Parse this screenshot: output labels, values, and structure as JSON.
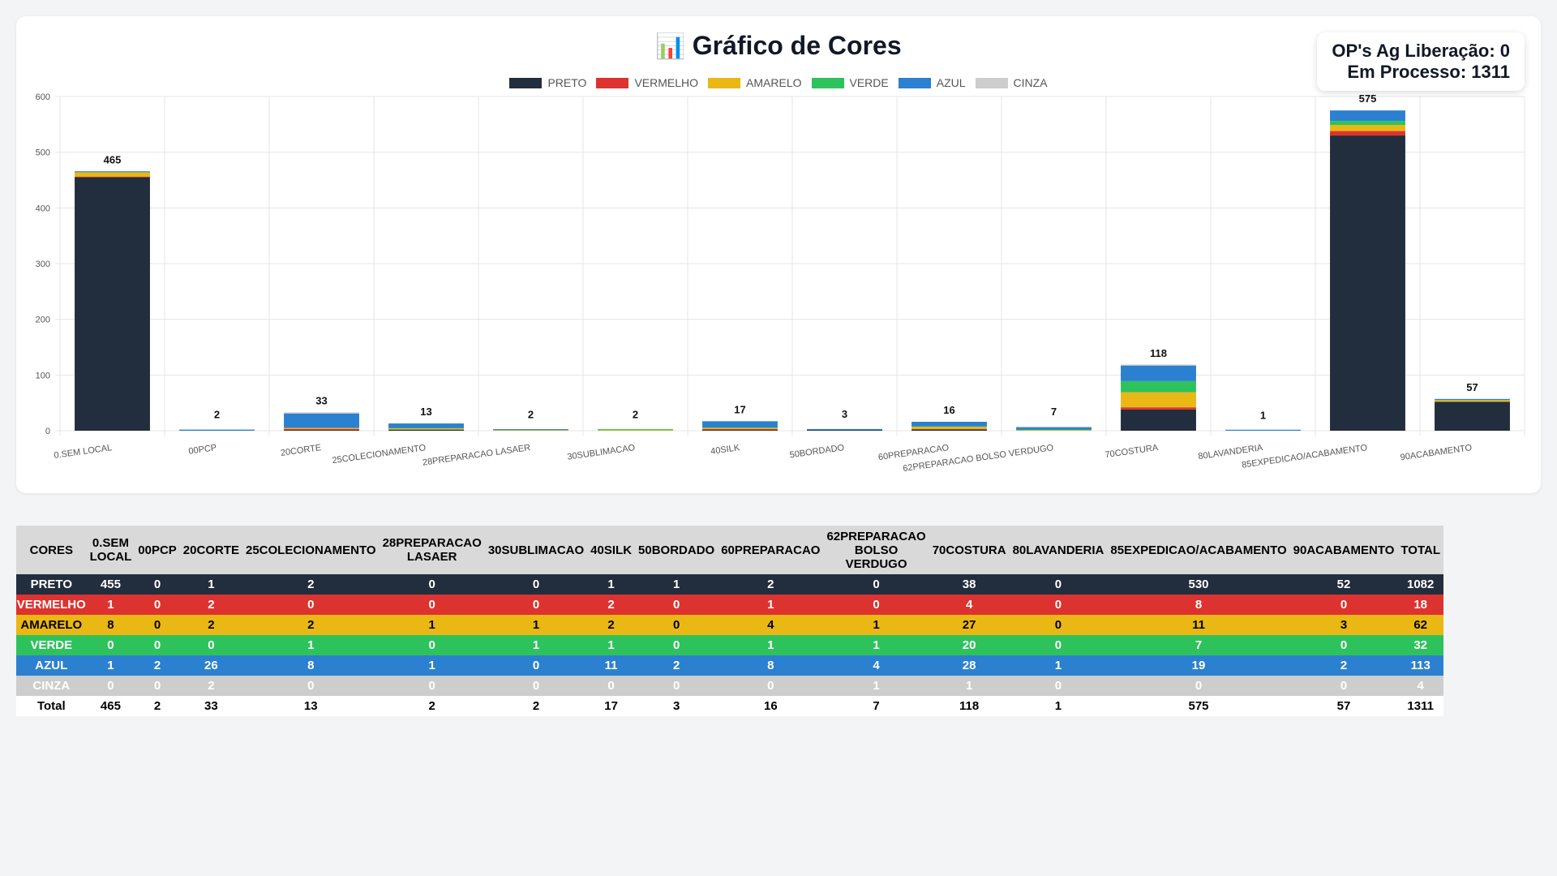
{
  "title": "Gráfico de Cores",
  "title_icon": "📊",
  "info": {
    "line1": "OP's Ag Liberação: 0",
    "line2": "Em Processo: 1311"
  },
  "chart_data": {
    "type": "bar",
    "stacked": true,
    "ylim": [
      0,
      600
    ],
    "yticks": [
      0,
      100,
      200,
      300,
      400,
      500,
      600
    ],
    "grid": true,
    "legend_position": "top",
    "categories": [
      "0.SEM LOCAL",
      "00PCP",
      "20CORTE",
      "25COLECIONAMENTO",
      "28PREPARACAO LASAER",
      "30SUBLIMACAO",
      "40SILK",
      "50BORDADO",
      "60PREPARACAO",
      "62PREPARACAO BOLSO VERDUGO",
      "70COSTURA",
      "80LAVANDERIA",
      "85EXPEDICAO/ACABAMENTO",
      "90ACABAMENTO"
    ],
    "series": [
      {
        "name": "PRETO",
        "color": "#222d3d",
        "values": [
          455,
          0,
          1,
          2,
          0,
          0,
          1,
          1,
          2,
          0,
          38,
          0,
          530,
          52
        ]
      },
      {
        "name": "VERMELHO",
        "color": "#dc3330",
        "values": [
          1,
          0,
          2,
          0,
          0,
          0,
          2,
          0,
          1,
          0,
          4,
          0,
          8,
          0
        ]
      },
      {
        "name": "AMARELO",
        "color": "#eab814",
        "values": [
          8,
          0,
          2,
          2,
          1,
          1,
          2,
          0,
          4,
          1,
          27,
          0,
          11,
          3
        ]
      },
      {
        "name": "VERDE",
        "color": "#2ec25d",
        "values": [
          0,
          0,
          0,
          1,
          0,
          1,
          1,
          0,
          1,
          1,
          20,
          0,
          7,
          0
        ]
      },
      {
        "name": "AZUL",
        "color": "#2b80d0",
        "values": [
          1,
          2,
          26,
          8,
          1,
          0,
          11,
          2,
          8,
          4,
          28,
          1,
          19,
          2
        ]
      },
      {
        "name": "CINZA",
        "color": "#cdcdcd",
        "values": [
          0,
          0,
          2,
          0,
          0,
          0,
          0,
          0,
          0,
          1,
          1,
          0,
          0,
          0
        ]
      }
    ],
    "totals": [
      465,
      2,
      33,
      13,
      2,
      2,
      17,
      3,
      16,
      7,
      118,
      1,
      575,
      57
    ]
  },
  "table": {
    "headers": [
      "CORES",
      "0.SEM LOCAL",
      "00PCP",
      "20CORTE",
      "25COLECIONAMENTO",
      "28PREPARACAO LASAER",
      "30SUBLIMACAO",
      "40SILK",
      "50BORDADO",
      "60PREPARACAO",
      "62PREPARACAO BOLSO VERDUGO",
      "70COSTURA",
      "80LAVANDERIA",
      "85EXPEDICAO/ACABAMENTO",
      "90ACABAMENTO",
      "TOTAL"
    ],
    "rows": [
      {
        "name": "PRETO",
        "bg": "#222d3d",
        "fg": "#ffffff",
        "values": [
          455,
          0,
          1,
          2,
          0,
          0,
          1,
          1,
          2,
          0,
          38,
          0,
          530,
          52,
          1082
        ]
      },
      {
        "name": "VERMELHO",
        "bg": "#dc3330",
        "fg": "#ffffff",
        "values": [
          1,
          0,
          2,
          0,
          0,
          0,
          2,
          0,
          1,
          0,
          4,
          0,
          8,
          0,
          18
        ]
      },
      {
        "name": "AMARELO",
        "bg": "#eab814",
        "fg": "#000000",
        "values": [
          8,
          0,
          2,
          2,
          1,
          1,
          2,
          0,
          4,
          1,
          27,
          0,
          11,
          3,
          62
        ]
      },
      {
        "name": "VERDE",
        "bg": "#2ec25d",
        "fg": "#ffffff",
        "values": [
          0,
          0,
          0,
          1,
          0,
          1,
          1,
          0,
          1,
          1,
          20,
          0,
          7,
          0,
          32
        ]
      },
      {
        "name": "AZUL",
        "bg": "#2b80d0",
        "fg": "#ffffff",
        "values": [
          1,
          2,
          26,
          8,
          1,
          0,
          11,
          2,
          8,
          4,
          28,
          1,
          19,
          2,
          113
        ]
      },
      {
        "name": "CINZA",
        "bg": "#cdcdcd",
        "fg": "#ffffff",
        "values": [
          0,
          0,
          2,
          0,
          0,
          0,
          0,
          0,
          0,
          1,
          1,
          0,
          0,
          0,
          4
        ]
      },
      {
        "name": "Total",
        "bg": "#ffffff",
        "fg": "#000000",
        "values": [
          465,
          2,
          33,
          13,
          2,
          2,
          17,
          3,
          16,
          7,
          118,
          1,
          575,
          57,
          1311
        ]
      }
    ]
  }
}
